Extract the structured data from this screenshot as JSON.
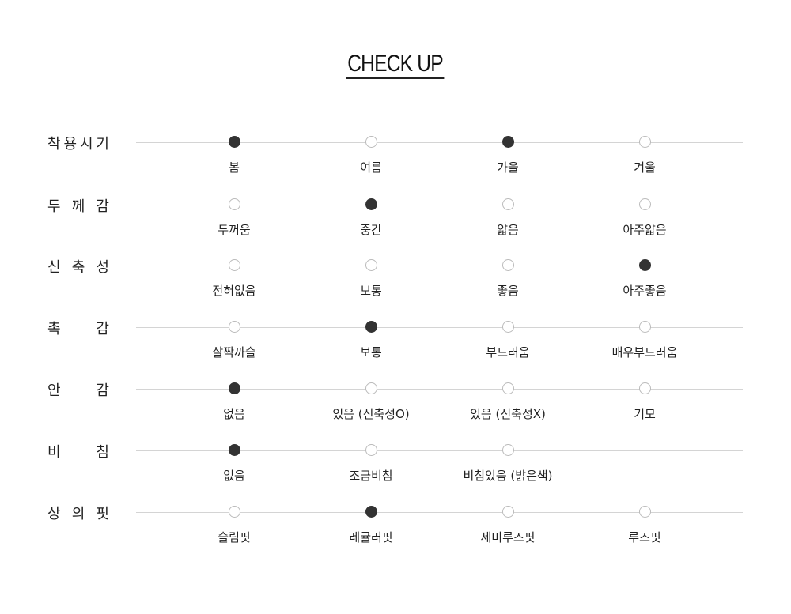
{
  "title": "CHECK UP",
  "colors": {
    "selected": "#333333",
    "unselected_border": "#bbbbbb",
    "line": "#d4d4d4"
  },
  "rows": [
    {
      "label": "착용시기",
      "options": [
        "봄",
        "여름",
        "가을",
        "겨울"
      ],
      "selected": [
        0,
        2
      ]
    },
    {
      "label": "두께감",
      "options": [
        "두꺼움",
        "중간",
        "얇음",
        "아주얇음"
      ],
      "selected": [
        1
      ]
    },
    {
      "label": "신축성",
      "options": [
        "전혀없음",
        "보통",
        "좋음",
        "아주좋음"
      ],
      "selected": [
        3
      ]
    },
    {
      "label": "촉감",
      "options": [
        "살짝까슬",
        "보통",
        "부드러움",
        "매우부드러움"
      ],
      "selected": [
        1
      ]
    },
    {
      "label": "안감",
      "options": [
        "없음",
        "있음 (신축성O)",
        "있음 (신축성X)",
        "기모"
      ],
      "selected": [
        0
      ]
    },
    {
      "label": "비침",
      "options": [
        "없음",
        "조금비침",
        "비침있음 (밝은색)"
      ],
      "selected": [
        0
      ]
    },
    {
      "label": "상의핏",
      "options": [
        "슬림핏",
        "레귤러핏",
        "세미루즈핏",
        "루즈핏"
      ],
      "selected": [
        1
      ]
    }
  ]
}
